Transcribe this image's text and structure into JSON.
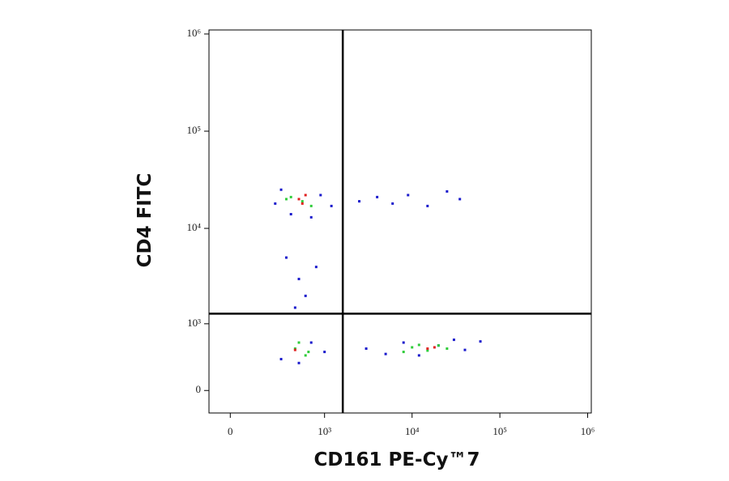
{
  "chart_data": {
    "type": "scatter",
    "x_label": "CD161 PE-Cy™7",
    "y_label": "CD4 FITC",
    "xlim": [
      -100,
      1100000
    ],
    "ylim": [
      -240,
      1100000
    ],
    "xticks": [
      0,
      {
        "value": 1000,
        "label": "10³"
      },
      {
        "value": 10000,
        "label": "10⁴"
      },
      {
        "value": 100000,
        "label": "10⁵"
      },
      {
        "value": 1000000,
        "label": "10⁶"
      }
    ],
    "yticks": [
      0,
      {
        "value": 1000,
        "label": "10³"
      },
      {
        "value": 10000,
        "label": "10⁴"
      },
      {
        "value": 100000,
        "label": "10⁵"
      },
      {
        "value": 1000000,
        "label": "10⁶"
      }
    ],
    "scale": "biexponential",
    "gate": {
      "x": 1620,
      "y": 1290
    },
    "series": [
      {
        "color": "#1a1acc",
        "x": [
          250,
          300,
          400,
          700,
          900,
          1200,
          2500,
          4000,
          6000,
          9000,
          15000,
          25000,
          35000,
          500,
          600,
          350,
          450,
          800,
          3000,
          5000,
          8000,
          20000,
          40000,
          60000,
          1000,
          300,
          500,
          700,
          12000,
          30000
        ],
        "y": [
          18000,
          25000,
          14000,
          13000,
          22000,
          17000,
          19000,
          21000,
          18000,
          22000,
          17000,
          24000,
          20000,
          3000,
          2000,
          5000,
          1500,
          4000,
          500,
          420,
          600,
          550,
          480,
          620,
          450,
          350,
          300,
          600,
          400,
          650
        ]
      },
      {
        "color": "#2fcc3a",
        "x": [
          400,
          550,
          700,
          450,
          600,
          10000,
          15000,
          20000,
          350,
          500,
          650,
          8000,
          25000,
          12000
        ],
        "y": [
          21000,
          19000,
          17000,
          500,
          400,
          520,
          470,
          550,
          20000,
          600,
          450,
          450,
          500,
          560
        ]
      },
      {
        "color": "#e02020",
        "x": [
          500,
          600,
          550,
          15000,
          18000,
          450
        ],
        "y": [
          20000,
          22000,
          18000,
          500,
          520,
          480
        ]
      }
    ]
  }
}
